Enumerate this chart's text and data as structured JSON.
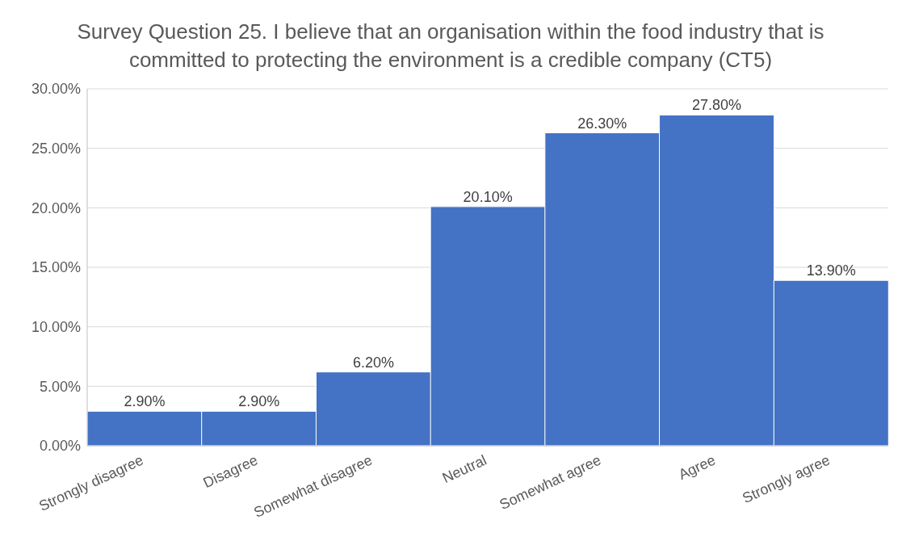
{
  "chart_data": {
    "type": "bar",
    "title": "Survey Question 25. I believe that an organisation within the food industry that is committed to protecting the environment is a credible company (CT5)",
    "categories": [
      "Strongly disagree",
      "Disagree",
      "Somewhat disagree",
      "Neutral",
      "Somewhat agree",
      "Agree",
      "Strongly agree"
    ],
    "values": [
      2.9,
      2.9,
      6.2,
      20.1,
      26.3,
      27.8,
      13.9
    ],
    "value_labels": [
      "2.90%",
      "2.90%",
      "6.20%",
      "20.10%",
      "26.30%",
      "27.80%",
      "13.90%"
    ],
    "color": "#4472c4",
    "ylim": [
      0,
      30
    ],
    "yticks": [
      {
        "value": 0,
        "label": "0.00%"
      },
      {
        "value": 5,
        "label": "5.00%"
      },
      {
        "value": 10,
        "label": "10.00%"
      },
      {
        "value": 15,
        "label": "15.00%"
      },
      {
        "value": 20,
        "label": "20.00%"
      },
      {
        "value": 25,
        "label": "25.00%"
      },
      {
        "value": 30,
        "label": "30.00%"
      }
    ],
    "grid": "y",
    "legend": false
  }
}
